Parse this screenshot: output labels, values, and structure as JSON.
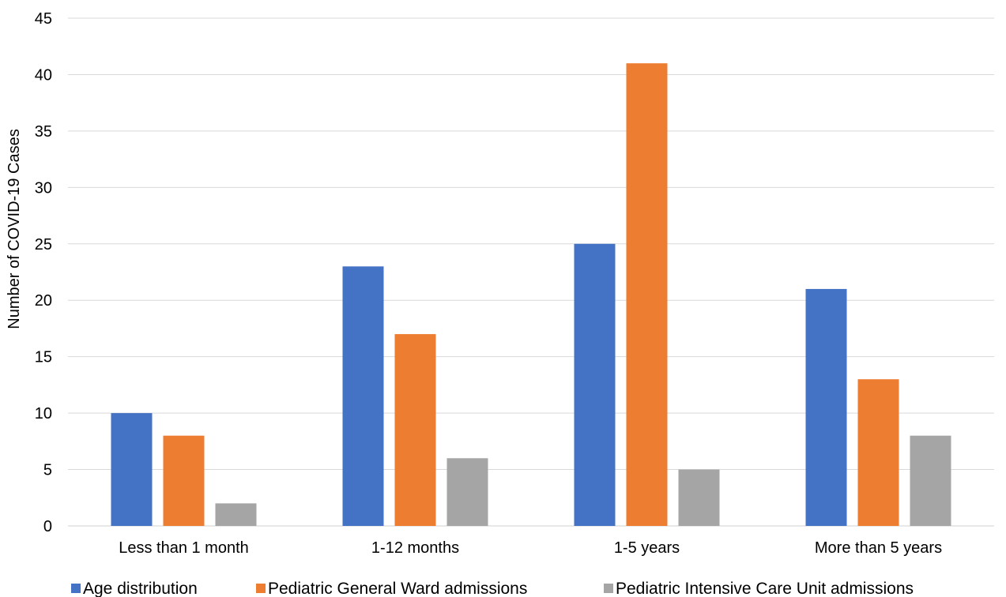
{
  "chart_data": {
    "type": "bar",
    "title": "",
    "xlabel": "",
    "ylabel": "Number of COVID-19 Cases",
    "ylim": [
      0,
      45
    ],
    "yticks": [
      0,
      5,
      10,
      15,
      20,
      25,
      30,
      35,
      40,
      45
    ],
    "grid": true,
    "legend_position": "bottom",
    "categories": [
      "Less than 1 month",
      "1-12 months",
      "1-5 years",
      "More than 5 years"
    ],
    "series": [
      {
        "name": "Age distribution",
        "color": "#4472c4",
        "values": [
          10,
          23,
          25,
          21
        ]
      },
      {
        "name": "Pediatric General Ward admissions",
        "color": "#ed7d31",
        "values": [
          8,
          17,
          41,
          13
        ]
      },
      {
        "name": "Pediatric Intensive Care Unit admissions",
        "color": "#a5a5a5",
        "values": [
          2,
          6,
          5,
          8
        ]
      }
    ]
  }
}
